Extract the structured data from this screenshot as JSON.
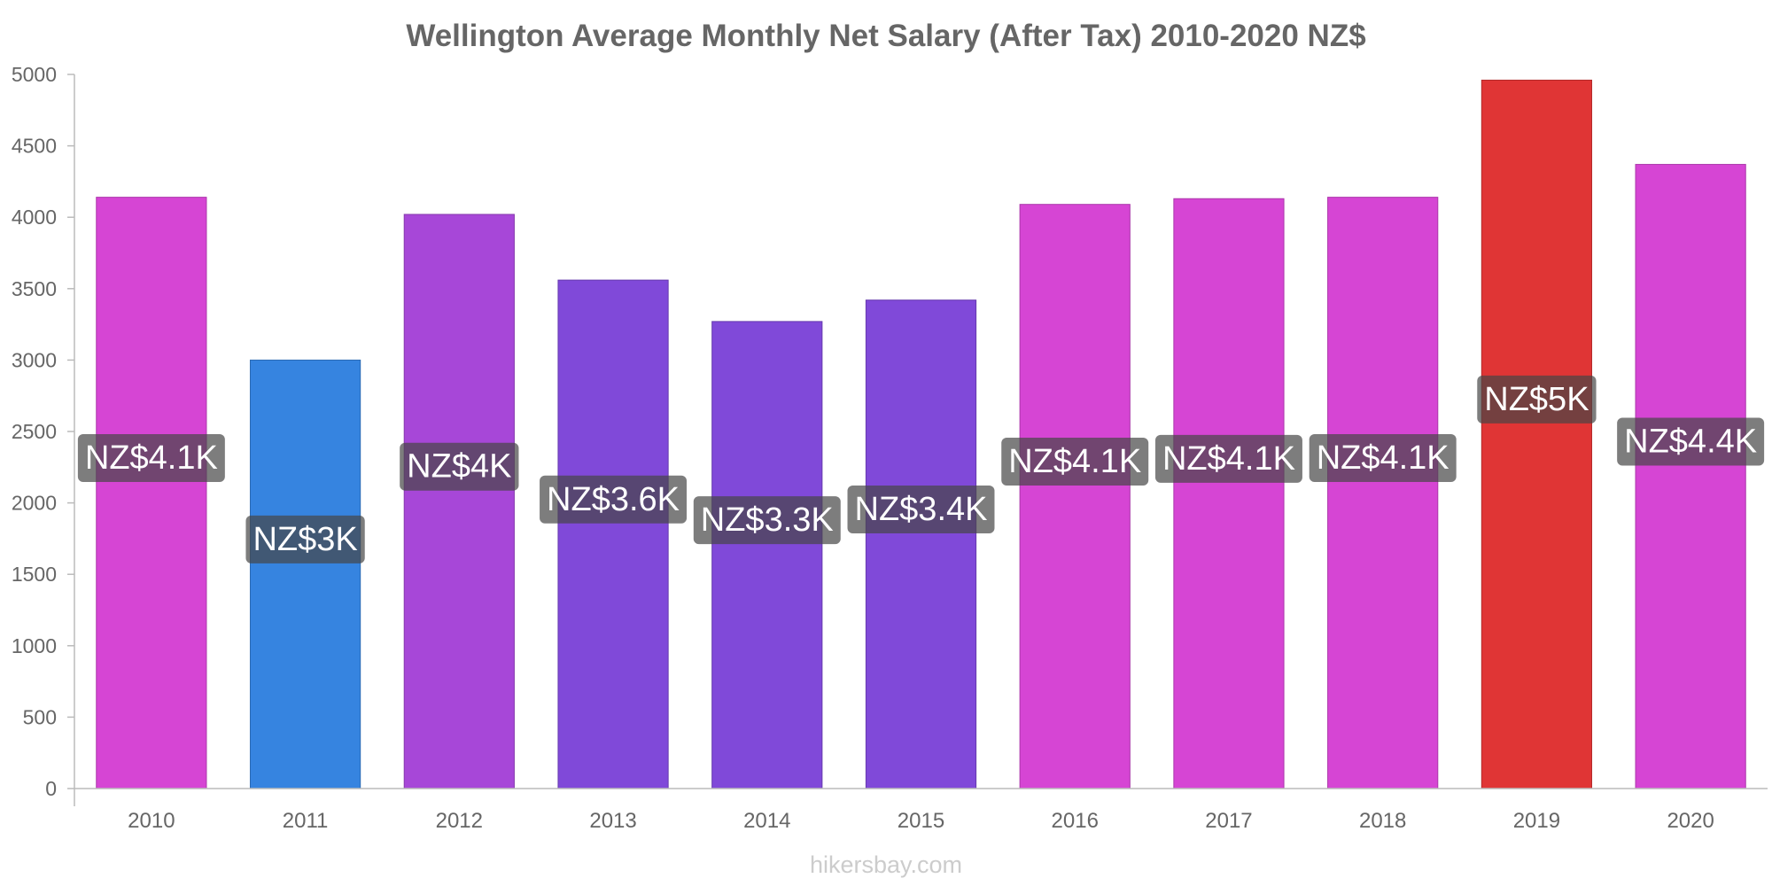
{
  "chart_data": {
    "type": "bar",
    "title": "Wellington Average Monthly Net Salary (After Tax) 2010-2020 NZ$",
    "xlabel": "",
    "ylabel": "",
    "categories": [
      "2010",
      "2011",
      "2012",
      "2013",
      "2014",
      "2015",
      "2016",
      "2017",
      "2018",
      "2019",
      "2020"
    ],
    "values": [
      4140,
      3000,
      4020,
      3560,
      3270,
      3420,
      4090,
      4130,
      4140,
      4960,
      4370
    ],
    "data_labels": [
      "NZ$4.1K",
      "NZ$3K",
      "NZ$4K",
      "NZ$3.6K",
      "NZ$3.3K",
      "NZ$3.4K",
      "NZ$4.1K",
      "NZ$4.1K",
      "NZ$4.1K",
      "NZ$5K",
      "NZ$4.4K"
    ],
    "colors": [
      "#d645d4",
      "#3684e0",
      "#a747d8",
      "#8049d9",
      "#8049d9",
      "#8049d9",
      "#d645d4",
      "#d645d4",
      "#d645d4",
      "#e03535",
      "#d645d4"
    ],
    "ylim": [
      0,
      5000
    ],
    "yticks": [
      0,
      500,
      1000,
      1500,
      2000,
      2500,
      3000,
      3500,
      4000,
      4500,
      5000
    ],
    "grid": false,
    "legend": "none"
  },
  "footer": {
    "source": "hikersbay.com"
  }
}
